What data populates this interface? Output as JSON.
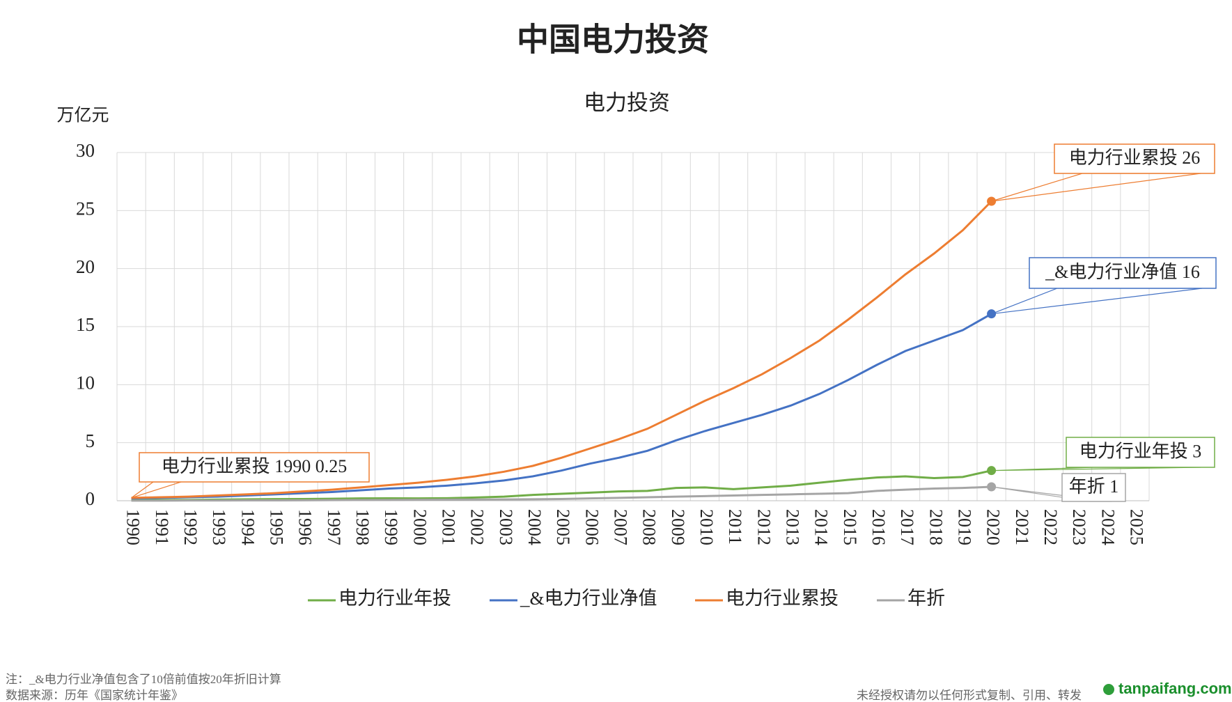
{
  "chart_data": {
    "type": "line",
    "title": "中国电力投资",
    "subtitle": "电力投资",
    "y_label": "万亿元",
    "categories": [
      "1990",
      "1991",
      "1992",
      "1993",
      "1994",
      "1995",
      "1996",
      "1997",
      "1998",
      "1999",
      "2000",
      "2001",
      "2002",
      "2003",
      "2004",
      "2005",
      "2006",
      "2007",
      "2008",
      "2009",
      "2010",
      "2011",
      "2012",
      "2013",
      "2014",
      "2015",
      "2016",
      "2017",
      "2018",
      "2019",
      "2020",
      "2021",
      "2022",
      "2023",
      "2024",
      "2025"
    ],
    "series": [
      {
        "name": "电力行业年投",
        "color": "#70ad47",
        "values": [
          0.05,
          0.06,
          0.07,
          0.1,
          0.12,
          0.14,
          0.15,
          0.17,
          0.2,
          0.21,
          0.2,
          0.22,
          0.28,
          0.35,
          0.5,
          0.6,
          0.7,
          0.8,
          0.85,
          1.1,
          1.15,
          1.0,
          1.15,
          1.3,
          1.55,
          1.8,
          2.0,
          2.1,
          1.95,
          2.05,
          2.6,
          null,
          null,
          null,
          null,
          null
        ]
      },
      {
        "name": "_&电力行业净值",
        "color": "#4472c4",
        "values": [
          0.2,
          0.25,
          0.3,
          0.35,
          0.45,
          0.55,
          0.65,
          0.75,
          0.9,
          1.05,
          1.15,
          1.3,
          1.5,
          1.75,
          2.1,
          2.6,
          3.2,
          3.7,
          4.3,
          5.2,
          6.0,
          6.7,
          7.4,
          8.2,
          9.2,
          10.4,
          11.7,
          12.9,
          13.8,
          14.7,
          16.1,
          null,
          null,
          null,
          null,
          null
        ]
      },
      {
        "name": "电力行业累投",
        "color": "#ed7d31",
        "values": [
          0.25,
          0.3,
          0.35,
          0.45,
          0.55,
          0.65,
          0.8,
          0.95,
          1.15,
          1.35,
          1.55,
          1.8,
          2.1,
          2.5,
          3.0,
          3.7,
          4.5,
          5.3,
          6.2,
          7.4,
          8.6,
          9.7,
          10.9,
          12.3,
          13.8,
          15.6,
          17.5,
          19.5,
          21.3,
          23.3,
          25.8,
          null,
          null,
          null,
          null,
          null
        ]
      },
      {
        "name": "年折",
        "color": "#a5a5a5",
        "values": [
          0.01,
          0.01,
          0.02,
          0.02,
          0.03,
          0.03,
          0.04,
          0.05,
          0.06,
          0.07,
          0.08,
          0.09,
          0.1,
          0.11,
          0.13,
          0.15,
          0.2,
          0.25,
          0.3,
          0.35,
          0.4,
          0.45,
          0.5,
          0.55,
          0.6,
          0.65,
          0.85,
          0.95,
          1.05,
          1.1,
          1.2,
          null,
          null,
          null,
          null,
          null
        ]
      }
    ],
    "ylim": [
      0,
      30
    ],
    "yticks": [
      0,
      5,
      10,
      15,
      20,
      25,
      30
    ],
    "grid": true,
    "annotations": [
      "电力行业累投 26",
      "_&电力行业净值 16",
      "电力行业年投 3",
      "年折 1",
      "电力行业累投 1990  0.25"
    ],
    "notes": [
      "注：_&电力行业净值包含了10倍前值按20年折旧计算",
      "数据来源：历年《国家统计年鉴》"
    ],
    "copyright": "未经授权请勿以任何形式复制、引用、转发",
    "logo": "tanpaifang.com"
  }
}
